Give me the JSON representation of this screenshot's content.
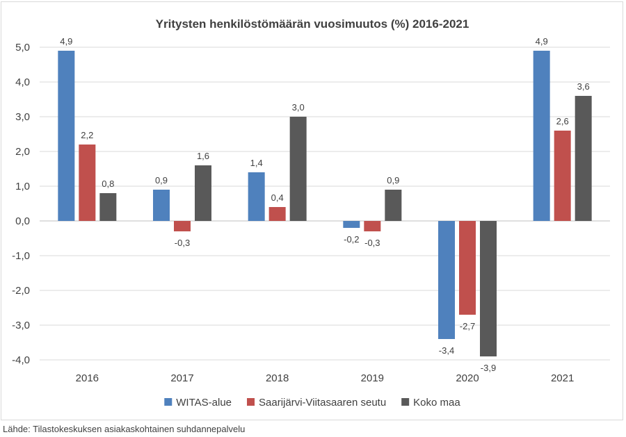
{
  "chart_data": {
    "type": "bar",
    "title": "Yritysten henkilöstömäärän vuosimuutos (%) 2016-2021",
    "categories": [
      "2016",
      "2017",
      "2018",
      "2019",
      "2020",
      "2021"
    ],
    "series": [
      {
        "name": "WITAS-alue",
        "color": "#4f81bd",
        "values": [
          4.9,
          0.9,
          1.4,
          -0.2,
          -3.4,
          4.9
        ]
      },
      {
        "name": "Saarijärvi-Viitasaaren seutu",
        "color": "#c0504d",
        "values": [
          2.2,
          -0.3,
          0.4,
          -0.3,
          -2.7,
          2.6
        ]
      },
      {
        "name": "Koko maa",
        "color": "#595959",
        "values": [
          0.8,
          1.6,
          3.0,
          0.9,
          -3.9,
          3.6
        ]
      }
    ],
    "data_labels": [
      [
        "4,9",
        "0,9",
        "1,4",
        "-0,2",
        "-3,4",
        "4,9"
      ],
      [
        "2,2",
        "-0,3",
        "0,4",
        "-0,3",
        "-2,7",
        "2,6"
      ],
      [
        "0,8",
        "1,6",
        "3,0",
        "0,9",
        "-3,9",
        "3,6"
      ]
    ],
    "ylim": [
      -4.0,
      5.0
    ],
    "yticks": [
      5.0,
      4.0,
      3.0,
      2.0,
      1.0,
      0.0,
      -1.0,
      -2.0,
      -3.0,
      -4.0
    ],
    "ytick_labels": [
      "5,0",
      "4,0",
      "3,0",
      "2,0",
      "1,0",
      "0,0",
      "-1,0",
      "-2,0",
      "-3,0",
      "-4,0"
    ],
    "grid": true,
    "legend_position": "bottom"
  },
  "source_note": "Lähde: Tilastokeskuksen asiakaskohtainen suhdannepalvelu"
}
